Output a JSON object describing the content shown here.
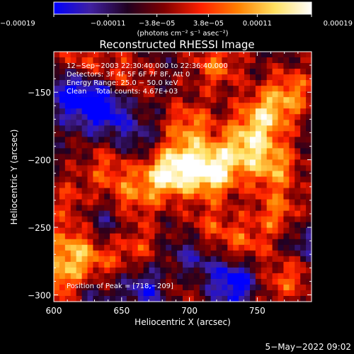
{
  "chart_data": {
    "type": "heatmap",
    "title": "Reconstructed RHESSI Image",
    "xlabel": "Heliocentric X (arcsec)",
    "ylabel": "Heliocentric Y (arcsec)",
    "xlim": [
      600,
      790
    ],
    "ylim": [
      -305,
      -120
    ],
    "x_ticks": [
      600,
      650,
      700,
      750
    ],
    "y_ticks": [
      -300,
      -250,
      -200,
      -150
    ],
    "x_tick_labels": [
      "600",
      "650",
      "700",
      "750"
    ],
    "y_tick_labels": [
      "−300",
      "−250",
      "−200",
      "−150"
    ],
    "colorbar": {
      "range": [
        -0.00019,
        0.00019
      ],
      "tick_values": [
        -0.00019,
        -0.00011,
        -3.8e-05,
        3.8e-05,
        0.00011,
        0.00019
      ],
      "tick_labels": [
        "−0.00019",
        "−0.00011",
        "−3.8e−05",
        "3.8e−05",
        "0.00011",
        "0.00019"
      ],
      "unit_label": "(photons cm⁻² s⁻¹ asec⁻²)",
      "colormap": [
        "#0000ff",
        "#4020a0",
        "#200020",
        "#800000",
        "#ff2000",
        "#ff8000",
        "#ffe060",
        "#ffffff"
      ]
    },
    "annotations": [
      "12−Sep−2003 22:30:40.000 to 22:36:40.000",
      "Detectors: 3F 4F 5F 6F 7F 8F, Att 0",
      "Energy Range: 25.0 − 50.0 keV",
      "Clean    Total counts: 4.67E+03"
    ],
    "peak_label": "Position of Peak = [718,−209]",
    "peak": [
      718,
      -209
    ],
    "grid": false,
    "sources": [
      {
        "x": 718,
        "y": -209,
        "amp": 1.0
      },
      {
        "x": 695,
        "y": -205,
        "amp": 0.85
      },
      {
        "x": 678,
        "y": -213,
        "amp": 0.7
      },
      {
        "x": 740,
        "y": -190,
        "amp": 0.75
      },
      {
        "x": 762,
        "y": -205,
        "amp": 0.7
      },
      {
        "x": 755,
        "y": -168,
        "amp": 0.8
      },
      {
        "x": 775,
        "y": -150,
        "amp": 0.6
      },
      {
        "x": 700,
        "y": -175,
        "amp": 0.6
      },
      {
        "x": 650,
        "y": -140,
        "amp": 0.45
      },
      {
        "x": 720,
        "y": -130,
        "amp": 0.55
      },
      {
        "x": 640,
        "y": -205,
        "amp": 0.45
      },
      {
        "x": 655,
        "y": -230,
        "amp": 0.5
      },
      {
        "x": 715,
        "y": -250,
        "amp": 0.4
      },
      {
        "x": 765,
        "y": -240,
        "amp": 0.55
      },
      {
        "x": 612,
        "y": -265,
        "amp": 0.6
      },
      {
        "x": 605,
        "y": -290,
        "amp": 0.7
      },
      {
        "x": 630,
        "y": -278,
        "amp": 0.5
      },
      {
        "x": 660,
        "y": -265,
        "amp": 0.45
      },
      {
        "x": 740,
        "y": -265,
        "amp": 0.5
      },
      {
        "x": 780,
        "y": -280,
        "amp": 0.5
      },
      {
        "x": 760,
        "y": -295,
        "amp": 0.35
      },
      {
        "x": 690,
        "y": -290,
        "amp": 0.45
      },
      {
        "x": 620,
        "y": -125,
        "amp": 0.45
      },
      {
        "x": 612,
        "y": -230,
        "amp": 0.35
      },
      {
        "x": 635,
        "y": -160,
        "amp": -0.9
      },
      {
        "x": 610,
        "y": -150,
        "amp": -0.6
      },
      {
        "x": 625,
        "y": -295,
        "amp": -0.4
      },
      {
        "x": 735,
        "y": -290,
        "amp": -0.85
      },
      {
        "x": 670,
        "y": -295,
        "amp": -0.6
      },
      {
        "x": 785,
        "y": -265,
        "amp": -0.55
      },
      {
        "x": 700,
        "y": -275,
        "amp": -0.5
      },
      {
        "x": 640,
        "y": -245,
        "amp": -0.4
      },
      {
        "x": 660,
        "y": -185,
        "amp": -0.35
      }
    ]
  },
  "footer": {
    "timestamp": "5−May−2022 09:02"
  }
}
